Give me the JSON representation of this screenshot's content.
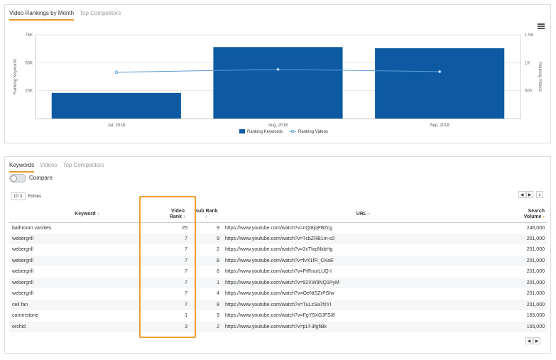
{
  "chart_panel": {
    "tabs": [
      {
        "label": "Video Rankings by Month",
        "active": true
      },
      {
        "label": "Top Competitors",
        "active": false
      }
    ]
  },
  "chart_data": {
    "type": "bar",
    "categories": [
      "Jul, 2018",
      "Aug, 2018",
      "Sep, 2018"
    ],
    "series": [
      {
        "name": "Ranking Keywords",
        "type": "bar",
        "axis": "left",
        "color": "#0d5aa3",
        "values": [
          23000,
          64000,
          63000
        ]
      },
      {
        "name": "Ranking Videos",
        "type": "line",
        "axis": "right",
        "color": "#5b9bd5",
        "values": [
          830,
          880,
          840
        ]
      }
    ],
    "ylabel": "Ranking Keywords",
    "y2label": "Ranking Videos",
    "ylim": [
      0,
      75000
    ],
    "y2lim": [
      0,
      1500
    ],
    "yticks": [
      "25K",
      "50K",
      "75K"
    ],
    "y2ticks": [
      "500",
      "1K",
      "1.5K"
    ],
    "yticks_values": [
      25000,
      50000,
      75000
    ],
    "y2ticks_values": [
      500,
      1000,
      1500
    ],
    "legend_position": "bottom"
  },
  "table_panel": {
    "tabs": [
      {
        "label": "Keywords",
        "active": true
      },
      {
        "label": "Videos",
        "active": false
      },
      {
        "label": "Top Competitors",
        "active": false
      }
    ],
    "compare_label": "Compare",
    "entries_value": "10",
    "entries_label": "Entries",
    "columns": {
      "keyword": "Keyword",
      "video_rank_1": "Video",
      "video_rank_2": "Rank",
      "sub_rank": "Sub Rank",
      "url": "URL",
      "search_volume_1": "Search",
      "search_volume_2": "Volume"
    },
    "rows": [
      {
        "keyword": "bathroom vanities",
        "video_rank": "25",
        "sub_rank": "9",
        "url": "https://www.youtube.com/watch?v=nQt8jqPBZcg",
        "search_volume": "246,000"
      },
      {
        "keyword": "webergrill",
        "video_rank": "7",
        "sub_rank": "9",
        "url": "https://www.youtube.com/watch?v=7cbZRB1m-s0",
        "search_volume": "201,000"
      },
      {
        "keyword": "webergrill",
        "video_rank": "7",
        "sub_rank": "2",
        "url": "https://www.youtube.com/watch?v=3xTlxpNkbHg",
        "search_volume": "201,000"
      },
      {
        "keyword": "webergrill",
        "video_rank": "7",
        "sub_rank": "8",
        "url": "https://www.youtube.com/watch?v=fvX1fR_CKeE",
        "search_volume": "201,000"
      },
      {
        "keyword": "webergrill",
        "video_rank": "7",
        "sub_rank": "6",
        "url": "https://www.youtube.com/watch?v=PtRnurLUQ-I",
        "search_volume": "201,000"
      },
      {
        "keyword": "webergrill",
        "video_rank": "7",
        "sub_rank": "1",
        "url": "https://www.youtube.com/watch?v=92XW9NQ1PyM",
        "search_volume": "201,000"
      },
      {
        "keyword": "webergrill",
        "video_rank": "7",
        "sub_rank": "4",
        "url": "https://www.youtube.com/watch?v=OeNtSZrPSIw",
        "search_volume": "201,000"
      },
      {
        "keyword": "ceil fan",
        "video_rank": "7",
        "sub_rank": "8",
        "url": "https://www.youtube.com/watch?v=TuLzSa7hlYI",
        "search_volume": "201,000"
      },
      {
        "keyword": "cornerstone",
        "video_rank": "1",
        "sub_rank": "9",
        "url": "https://www.youtube.com/watch?v=FgY5XGJFSI8",
        "search_volume": "165,000"
      },
      {
        "keyword": "orchid",
        "video_rank": "3",
        "sub_rank": "2",
        "url": "https://www.youtube.com/watch?v=pLf-3fgfiBk",
        "search_volume": "165,000"
      }
    ]
  },
  "icons": {
    "menu": "hamburger-menu-icon",
    "prev": "chevron-left-icon",
    "next": "chevron-right-icon",
    "download": "download-icon",
    "sort": "sort-icon"
  },
  "colors": {
    "accent": "#e39a2d",
    "bar": "#0d5aa3",
    "line": "#5b9bd5",
    "highlight": "#f0a030"
  }
}
